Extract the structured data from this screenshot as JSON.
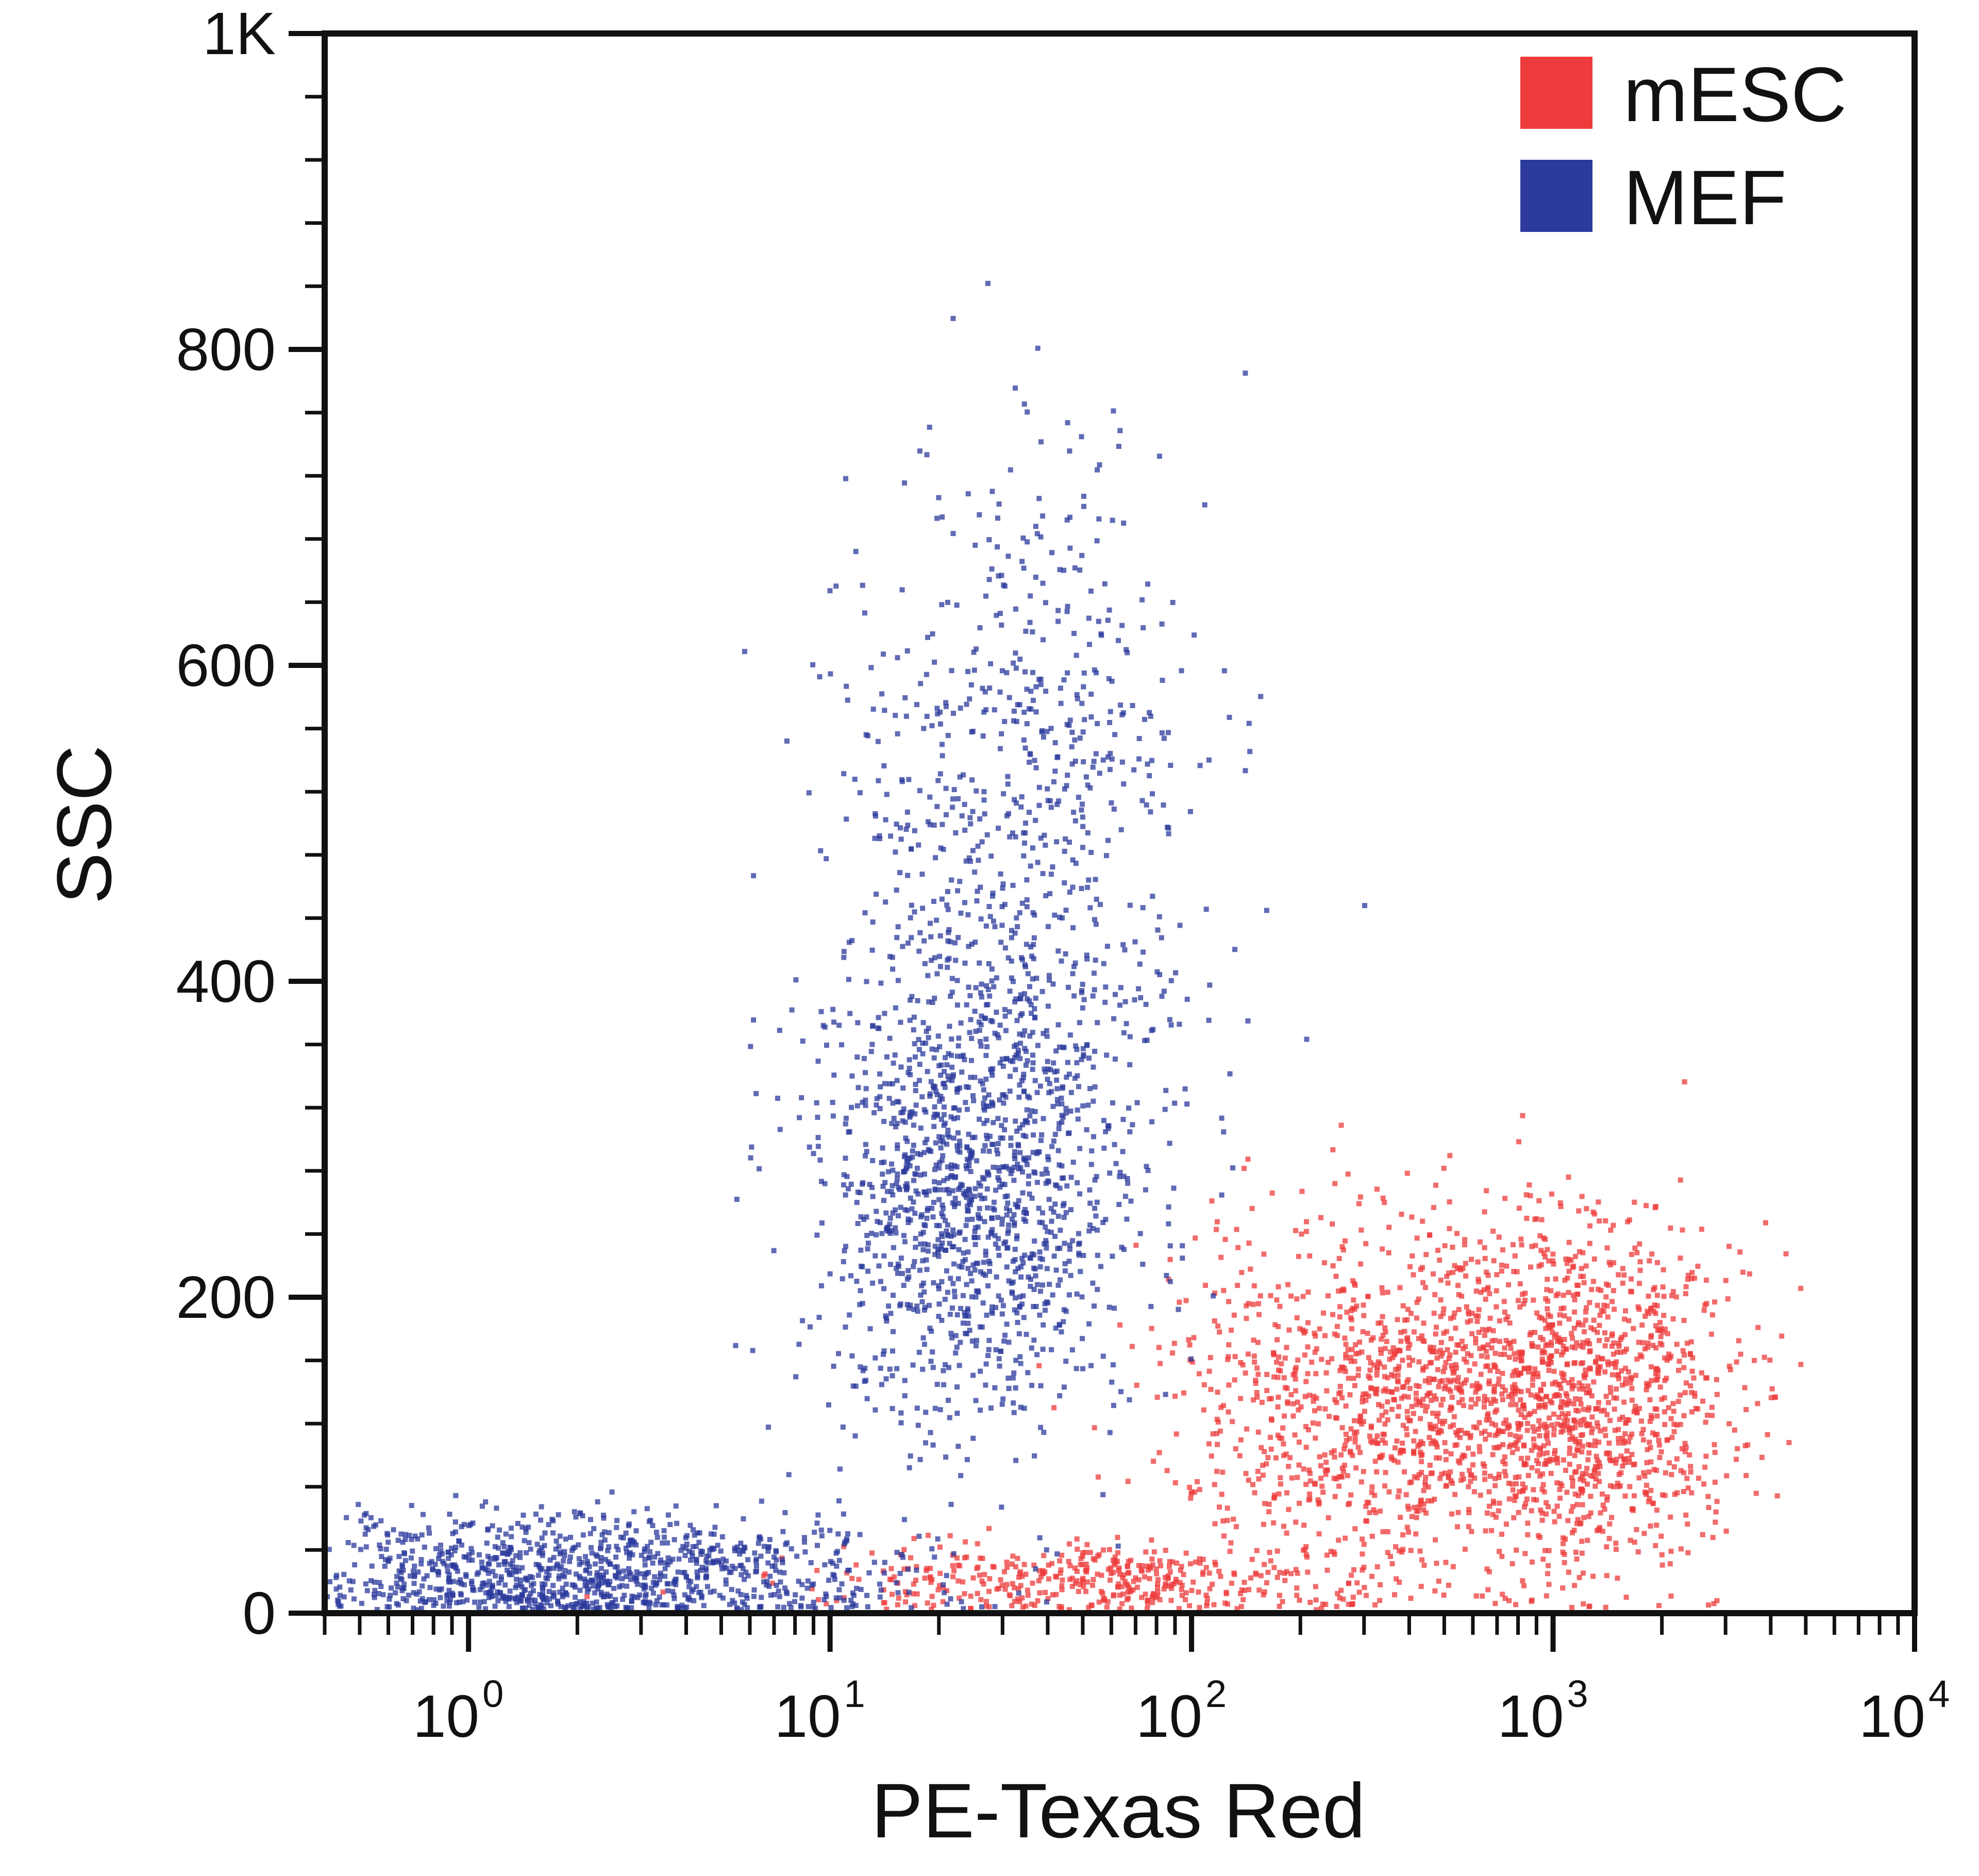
{
  "chart_data": {
    "type": "scatter",
    "title": "",
    "xlabel": "PE-Texas Red",
    "ylabel": "SSC",
    "x_scale": "log",
    "xlim": [
      0.4,
      10000
    ],
    "ylim": [
      0,
      1000
    ],
    "x_ticks": [
      {
        "value": 1,
        "base": "10",
        "exp": "0"
      },
      {
        "value": 10,
        "base": "10",
        "exp": "1"
      },
      {
        "value": 100,
        "base": "10",
        "exp": "2"
      },
      {
        "value": 1000,
        "base": "10",
        "exp": "3"
      },
      {
        "value": 10000,
        "base": "10",
        "exp": "4"
      }
    ],
    "y_ticks": [
      {
        "value": 0,
        "label": "0"
      },
      {
        "value": 200,
        "label": "200"
      },
      {
        "value": 400,
        "label": "400"
      },
      {
        "value": 600,
        "label": "600"
      },
      {
        "value": 800,
        "label": "800"
      },
      {
        "value": 1000,
        "label": "1K"
      }
    ],
    "grid": false,
    "legend_position": "top-right",
    "series": [
      {
        "name": "mESC",
        "color": "#ee3b3b",
        "clusters": [
          {
            "center_x": 350,
            "center_y": 130,
            "spread_log10_x": 0.3,
            "spread_y": 60
          },
          {
            "center_x": 1200,
            "center_y": 140,
            "spread_log10_x": 0.22,
            "spread_y": 55
          },
          {
            "center_x": 50,
            "center_y": 20,
            "spread_log10_x": 0.35,
            "spread_y": 12
          }
        ]
      },
      {
        "name": "MEF",
        "color": "#2b3a9c",
        "clusters": [
          {
            "center_x": 25,
            "center_y": 270,
            "spread_log10_x": 0.22,
            "spread_y": 75
          },
          {
            "center_x": 35,
            "center_y": 500,
            "spread_log10_x": 0.25,
            "spread_y": 120
          },
          {
            "center_x": 2,
            "center_y": 25,
            "spread_log10_x": 0.45,
            "spread_y": 20
          }
        ]
      }
    ]
  }
}
